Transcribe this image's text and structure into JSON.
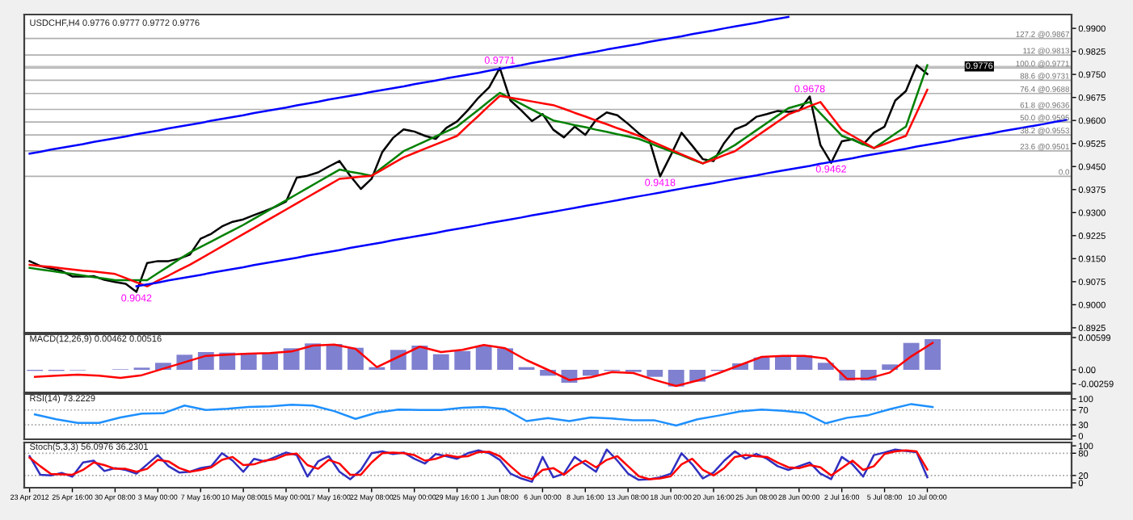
{
  "chart_data": [
    {
      "type": "line",
      "title": "USDCHF,H4 0.9776 0.9777 0.9772 0.9776",
      "ylim": [
        0.8909,
        0.9945
      ],
      "tick_labels": "y",
      "grid": false,
      "categories": [
        null,
        null,
        null,
        null,
        null,
        null,
        null,
        null,
        null,
        null,
        null,
        null,
        null,
        null,
        null,
        null,
        null,
        null,
        null,
        null,
        null,
        null,
        null,
        null,
        null,
        null,
        null,
        null,
        null,
        null,
        null,
        null,
        null,
        null,
        null,
        null,
        null,
        null,
        null,
        null,
        null,
        null,
        null,
        null,
        null,
        null,
        null,
        null,
        null,
        null,
        null,
        null,
        null,
        null,
        null,
        null,
        null,
        null,
        null,
        null,
        null,
        null,
        null,
        null,
        null,
        null,
        null,
        null,
        null,
        null,
        null,
        null,
        null,
        null,
        null,
        null,
        null,
        null,
        null,
        null,
        null,
        null,
        null,
        null,
        null,
        null,
        null,
        null,
        null,
        null,
        null,
        null,
        null,
        null,
        null,
        null,
        null,
        null
      ],
      "yticks": [
        {
          "value": 0.99,
          "label": "0.9900"
        },
        {
          "value": 0.9825,
          "label": "0.9825"
        },
        {
          "value": 0.975,
          "label": "0.9750"
        },
        {
          "value": 0.9675,
          "label": "0.9675"
        },
        {
          "value": 0.96,
          "label": "0.9600"
        },
        {
          "value": 0.9525,
          "label": "0.9525"
        },
        {
          "value": 0.945,
          "label": "0.9450"
        },
        {
          "value": 0.9375,
          "label": "0.9375"
        },
        {
          "value": 0.93,
          "label": "0.9300"
        },
        {
          "value": 0.9225,
          "label": "0.9225"
        },
        {
          "value": 0.915,
          "label": "0.9150"
        },
        {
          "value": 0.9075,
          "label": "0.9075"
        },
        {
          "value": 0.9,
          "label": "0.9000"
        },
        {
          "value": 0.8925,
          "label": "0.8925"
        }
      ],
      "series": [
        {
          "color": "#000000",
          "values": [
            0.9142,
            0.9126,
            0.9118,
            0.911,
            0.9092,
            0.9092,
            0.9093,
            0.9081,
            0.9074,
            0.9068,
            0.9042,
            0.9136,
            0.9142,
            0.9142,
            0.915,
            0.9163,
            0.9215,
            0.9231,
            0.9255,
            0.927,
            0.9278,
            0.9292,
            0.9305,
            0.9319,
            0.9336,
            0.9414,
            0.942,
            0.9431,
            0.945,
            0.9468,
            0.942,
            0.9377,
            0.941,
            0.9497,
            0.9543,
            0.9571,
            0.9564,
            0.955,
            0.954,
            0.9576,
            0.9597,
            0.9633,
            0.9674,
            0.9708,
            0.9771,
            0.9665,
            0.9633,
            0.9598,
            0.9621,
            0.957,
            0.9545,
            0.958,
            0.9553,
            0.9602,
            0.9626,
            0.9617,
            0.9589,
            0.9558,
            0.9535,
            0.9418,
            0.9487,
            0.956,
            0.9518,
            0.9474,
            0.9468,
            0.9527,
            0.9571,
            0.9585,
            0.9612,
            0.9621,
            0.9631,
            0.9628,
            0.9632,
            0.9678,
            0.952,
            0.9462,
            0.9532,
            0.9539,
            0.9522,
            0.956,
            0.958,
            0.9665,
            0.9696,
            0.978,
            0.9751,
            null,
            null,
            null,
            null,
            null,
            null,
            null,
            null,
            null,
            null,
            null,
            null,
            null
          ],
          "value_labels": [
            null,
            null,
            null,
            null,
            null,
            null,
            null,
            null,
            null,
            null,
            "0.9042",
            null,
            null,
            null,
            null,
            null,
            null,
            null,
            null,
            null,
            null,
            null,
            null,
            null,
            null,
            null,
            null,
            null,
            null,
            null,
            null,
            null,
            null,
            null,
            null,
            null,
            null,
            null,
            null,
            null,
            null,
            null,
            null,
            null,
            "0.9771",
            null,
            null,
            null,
            null,
            null,
            null,
            null,
            null,
            null,
            null,
            null,
            null,
            null,
            null,
            "0.9418",
            null,
            null,
            null,
            null,
            null,
            null,
            null,
            null,
            null,
            null,
            null,
            null,
            null,
            "0.9678",
            null,
            "0.9462",
            null,
            null,
            null,
            null,
            null,
            null,
            null,
            null,
            null,
            null,
            null,
            null,
            null,
            null,
            null,
            null,
            null,
            null,
            null,
            null,
            null,
            null
          ]
        },
        {
          "color": "#008000",
          "values": [
            0.912,
            0.9115,
            0.911,
            0.9105,
            0.91,
            0.9095,
            0.909,
            0.9085,
            0.908,
            0.908,
            0.908,
            0.908,
            0.9103,
            0.9125,
            0.9148,
            0.917,
            0.9188,
            0.9206,
            0.9224,
            0.9242,
            0.926,
            0.928,
            0.93,
            0.932,
            0.934,
            0.936,
            0.938,
            0.94,
            0.942,
            0.944,
            0.9433,
            0.9427,
            0.942,
            0.9447,
            0.9473,
            0.95,
            0.9516,
            0.9532,
            0.9548,
            0.9564,
            0.958,
            0.9608,
            0.9635,
            0.9663,
            0.969,
            0.9672,
            0.9654,
            0.9636,
            0.9618,
            0.96,
            0.9593,
            0.9585,
            0.9578,
            0.957,
            0.9563,
            0.9555,
            0.9548,
            0.954,
            0.9527,
            0.9513,
            0.95,
            0.9487,
            0.9473,
            0.946,
            0.948,
            0.95,
            0.952,
            0.9544,
            0.9568,
            0.9592,
            0.9616,
            0.964,
            0.965,
            0.966,
            0.9623,
            0.9587,
            0.955,
            0.9537,
            0.9523,
            0.951,
            0.9533,
            0.9557,
            0.958,
            0.968,
            0.978,
            null,
            null,
            null,
            null,
            null,
            null,
            null,
            null,
            null,
            null,
            null,
            null,
            null
          ]
        },
        {
          "color": "#ff0000",
          "values": [
            0.913,
            0.9126,
            0.9123,
            0.9119,
            0.9115,
            0.9111,
            0.9108,
            0.9104,
            0.91,
            0.9087,
            0.9073,
            0.906,
            0.9078,
            0.9095,
            0.9113,
            0.913,
            0.915,
            0.917,
            0.919,
            0.921,
            0.923,
            0.925,
            0.927,
            0.929,
            0.931,
            0.933,
            0.935,
            0.937,
            0.939,
            0.941,
            0.9413,
            0.9417,
            0.942,
            0.944,
            0.946,
            0.948,
            0.9494,
            0.9508,
            0.9522,
            0.9536,
            0.955,
            0.9583,
            0.9615,
            0.9648,
            0.968,
            0.9674,
            0.9668,
            0.9662,
            0.9656,
            0.965,
            0.9638,
            0.9625,
            0.9613,
            0.96,
            0.9588,
            0.9575,
            0.9563,
            0.955,
            0.9535,
            0.952,
            0.9505,
            0.949,
            0.9475,
            0.946,
            0.9473,
            0.9487,
            0.95,
            0.9524,
            0.9548,
            0.9572,
            0.9596,
            0.962,
            0.9633,
            0.9647,
            0.966,
            0.9615,
            0.957,
            0.955,
            0.953,
            0.951,
            0.9523,
            0.9537,
            0.955,
            0.9625,
            0.97,
            null,
            null,
            null,
            null,
            null,
            null,
            null,
            null,
            null,
            null,
            null,
            null,
            null
          ]
        },
        {
          "color": "#0000ff",
          "values": [
            0.9492,
            0.9498,
            0.9505,
            0.9511,
            0.9517,
            0.9523,
            0.953,
            0.9536,
            0.9542,
            0.9548,
            0.9555,
            0.9561,
            0.9567,
            0.9574,
            0.958,
            0.9586,
            0.9592,
            0.9599,
            0.9605,
            0.9611,
            0.9617,
            0.9624,
            0.963,
            0.9636,
            0.9642,
            0.9649,
            0.9655,
            0.9661,
            0.9668,
            0.9674,
            0.968,
            0.9686,
            0.9693,
            0.9699,
            0.9705,
            0.9711,
            0.9718,
            0.9724,
            0.973,
            0.9737,
            0.9743,
            0.9749,
            0.9755,
            0.9762,
            0.9768,
            0.9774,
            0.978,
            0.9787,
            0.9793,
            0.9799,
            0.9805,
            0.9812,
            0.9818,
            0.9824,
            0.9831,
            0.9837,
            0.9843,
            0.9849,
            0.9856,
            0.9862,
            0.9868,
            0.9874,
            0.9881,
            0.9887,
            0.9893,
            0.99,
            0.9906,
            0.9912,
            0.9918,
            0.9925,
            0.9931,
            0.9937,
            null,
            null,
            null,
            null,
            null,
            null,
            null,
            null,
            null,
            null,
            null,
            null,
            null,
            null,
            null,
            null,
            null,
            null,
            null,
            null,
            null,
            null,
            null,
            null,
            null,
            null
          ]
        },
        {
          "color": "#0000ff",
          "values": [
            null,
            null,
            null,
            null,
            null,
            null,
            null,
            null,
            null,
            null,
            0.906,
            0.9066,
            0.9072,
            0.9079,
            0.9085,
            0.9091,
            0.9097,
            0.9104,
            0.911,
            0.9116,
            0.9122,
            0.9129,
            0.9135,
            0.9141,
            0.9147,
            0.9153,
            0.916,
            0.9166,
            0.9172,
            0.9178,
            0.9185,
            0.9191,
            0.9197,
            0.9203,
            0.921,
            0.9216,
            0.9222,
            0.9228,
            0.9234,
            0.9241,
            0.9247,
            0.9253,
            0.9259,
            0.9266,
            0.9272,
            0.9278,
            0.9284,
            0.9291,
            0.9297,
            0.9303,
            0.9309,
            0.9315,
            0.9322,
            0.9328,
            0.9334,
            0.934,
            0.9347,
            0.9353,
            0.9359,
            0.9365,
            0.9372,
            0.9378,
            0.9384,
            0.939,
            0.9396,
            0.9403,
            0.9409,
            0.9415,
            0.9421,
            0.9428,
            0.9434,
            0.944,
            0.9446,
            0.9452,
            0.9459,
            0.9465,
            0.9471,
            0.9477,
            0.9484,
            0.949,
            0.9496,
            0.9502,
            0.9508,
            0.9515,
            0.9521,
            0.9527,
            0.9533,
            0.954,
            0.9546,
            0.9552,
            0.9558,
            0.9565,
            0.9571,
            0.9577,
            0.9583,
            0.9589,
            0.9596,
            0.9602
          ]
        }
      ],
      "ref_lines": [
        {
          "axis": "y",
          "value": 0.9776,
          "label": "0.9776",
          "color": "#c0c0c0",
          "line_style": "solid"
        },
        {
          "axis": "y",
          "value": 0.9418,
          "color": "#b0b0b0"
        },
        {
          "axis": "y",
          "value": 0.9501,
          "label": "23.6 @0.9501",
          "color": "#b0b0b0"
        },
        {
          "axis": "y",
          "value": 0.9553,
          "label": "38.2 @0.9553",
          "color": "#b0b0b0"
        },
        {
          "axis": "y",
          "value": 0.9595,
          "label": "50.0 @0.9595",
          "color": "#b0b0b0"
        },
        {
          "axis": "y",
          "value": 0.9636,
          "label": "61.8 @0.9636",
          "color": "#b0b0b0"
        },
        {
          "axis": "y",
          "value": 0.9688,
          "label": "76.4 @0.9688",
          "color": "#b0b0b0"
        },
        {
          "axis": "y",
          "value": 0.9731,
          "label": "88.6 @0.9731",
          "color": "#b0b0b0"
        },
        {
          "axis": "y",
          "value": 0.9771,
          "label": "100.0 @0.9771",
          "color": "#b0b0b0"
        },
        {
          "axis": "y",
          "value": 0.9813,
          "label": "112 @0.9813",
          "color": "#b0b0b0"
        },
        {
          "axis": "y",
          "value": 0.9867,
          "label": "127.2 @0.9867",
          "color": "#b0b0b0"
        }
      ],
      "annotations": [
        {
          "text": "0.0",
          "y": 0.9418
        }
      ]
    },
    {
      "type": "bar",
      "title": "MACD(12,26,9) 0.00462 0.00516",
      "ylim": [
        -0.0042,
        0.0066
      ],
      "tick_labels": "y",
      "grid": false,
      "categories": [
        null,
        null,
        null,
        null,
        null,
        null,
        null,
        null,
        null,
        null,
        null,
        null,
        null,
        null,
        null,
        null,
        null,
        null,
        null,
        null,
        null,
        null,
        null,
        null,
        null,
        null,
        null,
        null,
        null,
        null,
        null,
        null,
        null,
        null,
        null,
        null,
        null,
        null,
        null,
        null,
        null,
        null,
        null,
        null,
        null,
        null,
        null,
        null,
        null
      ],
      "yticks": [
        {
          "value": 0.00599,
          "label": "0.00599"
        },
        {
          "value": 0,
          "label": "0.00"
        },
        {
          "value": -0.00259,
          "label": "-0.00259"
        }
      ],
      "series": [
        {
          "color": "#8080d0",
          "values": [
            -0.0002,
            -0.0002,
            -0.0001,
            0.0,
            0.0001,
            0.0004,
            0.0013,
            0.0028,
            0.0033,
            0.0032,
            0.0031,
            0.003,
            0.004,
            0.0049,
            0.0048,
            0.0041,
            0.0005,
            0.0037,
            0.0045,
            0.0029,
            0.0035,
            0.0044,
            0.004,
            0.0005,
            -0.0011,
            -0.0024,
            -0.0011,
            -0.0002,
            -0.0004,
            -0.0013,
            -0.0031,
            -0.0022,
            -0.0002,
            0.0012,
            0.0023,
            0.0027,
            0.0027,
            0.0013,
            -0.002,
            -0.002,
            0.001,
            0.005,
            0.0057,
            null,
            null,
            null,
            null,
            null,
            null
          ]
        },
        {
          "type": "line",
          "color": "#ff0000",
          "values": [
            -0.0013,
            -0.0011,
            -0.0009,
            -0.0011,
            -0.0015,
            -0.001,
            0.0002,
            0.0014,
            0.0026,
            0.0028,
            0.003,
            0.0031,
            0.0034,
            0.0045,
            0.0047,
            0.0039,
            0.0005,
            0.0024,
            0.0043,
            0.0033,
            0.0037,
            0.0046,
            0.004,
            0.0018,
            0.0,
            -0.0019,
            -0.0014,
            -0.0004,
            -0.0006,
            -0.0019,
            -0.003,
            -0.002,
            -0.0006,
            0.0009,
            0.0024,
            0.0026,
            0.0026,
            0.0021,
            -0.0017,
            -0.0016,
            -0.0005,
            0.0025,
            0.005,
            null,
            null,
            null,
            null,
            null,
            null
          ]
        }
      ]
    },
    {
      "type": "line",
      "title": "RSI(14) 73.2229",
      "ylim": [
        -9,
        113
      ],
      "tick_labels": "y",
      "grid": false,
      "yticks": [
        100,
        70,
        30,
        0
      ],
      "categories": [
        null,
        null,
        null,
        null,
        null,
        null,
        null,
        null,
        null,
        null,
        null,
        null,
        null,
        null,
        null,
        null,
        null,
        null,
        null,
        null,
        null,
        null,
        null,
        null,
        null,
        null,
        null,
        null,
        null,
        null,
        null,
        null,
        null,
        null,
        null,
        null,
        null,
        null,
        null,
        null,
        null,
        null,
        null,
        null,
        null,
        null,
        null,
        null,
        null
      ],
      "series": [
        {
          "color": "#1e90ff",
          "values": [
            58,
            45,
            35,
            35,
            50,
            60,
            61,
            82,
            70,
            73,
            78,
            80,
            84,
            82,
            67,
            46,
            63,
            71,
            70,
            70,
            76,
            78,
            72,
            40,
            48,
            40,
            50,
            47,
            42,
            42,
            28,
            45,
            55,
            66,
            71,
            68,
            62,
            34,
            49,
            56,
            72,
            86,
            78,
            null,
            null,
            null,
            null,
            null,
            null
          ]
        }
      ],
      "ref_lines": [
        {
          "axis": "y",
          "value": 70,
          "color": "#a0a0a0",
          "line_style": "dotted"
        },
        {
          "axis": "y",
          "value": 30,
          "color": "#a0a0a0",
          "line_style": "dotted"
        }
      ]
    },
    {
      "type": "line",
      "title": "Stoch(5,3,3) 56.0976 36.2301",
      "ylim": [
        -13,
        109
      ],
      "grid": false,
      "yticks": [
        100,
        80,
        20,
        0
      ],
      "categories": [
        "23 Apr 2012",
        null,
        null,
        null,
        "25 Apr 16:00",
        null,
        null,
        null,
        "30 Apr 08:00",
        null,
        null,
        null,
        "3 May 00:00",
        null,
        null,
        null,
        "7 May 16:00",
        null,
        null,
        null,
        "10 May 08:00",
        null,
        null,
        null,
        "15 May 00:00",
        null,
        null,
        null,
        "17 May 16:00",
        null,
        null,
        null,
        "22 May 08:00",
        null,
        null,
        null,
        "25 May 00:00",
        null,
        null,
        null,
        "29 May 16:00",
        null,
        null,
        null,
        "1 Jun 08:00",
        null,
        null,
        null,
        "6 Jun 00:00",
        null,
        null,
        null,
        "8 Jun 16:00",
        null,
        null,
        null,
        "13 Jun 08:00",
        null,
        null,
        null,
        "18 Jun 00:00",
        null,
        null,
        null,
        "20 Jun 16:00",
        null,
        null,
        null,
        "25 Jun 08:00",
        null,
        null,
        null,
        "28 Jun 00:00",
        null,
        null,
        null,
        "2 Jul 16:00",
        null,
        null,
        null,
        "5 Jul 08:00",
        null,
        null,
        null,
        "10 Jul 00:00",
        null,
        null,
        null,
        null,
        null,
        null,
        null,
        null,
        null,
        null,
        null,
        null,
        null
      ],
      "series": [
        {
          "color": "#3030c0",
          "values": [
            72,
            22,
            20,
            27,
            17,
            55,
            60,
            32,
            40,
            35,
            25,
            50,
            75,
            45,
            28,
            30,
            40,
            45,
            80,
            60,
            30,
            65,
            58,
            70,
            82,
            75,
            17,
            58,
            72,
            30,
            10,
            35,
            80,
            85,
            78,
            82,
            65,
            52,
            78,
            72,
            65,
            80,
            88,
            80,
            62,
            25,
            12,
            3,
            70,
            15,
            25,
            70,
            50,
            30,
            90,
            60,
            25,
            8,
            10,
            15,
            25,
            80,
            50,
            12,
            28,
            60,
            85,
            65,
            78,
            65,
            45,
            35,
            45,
            55,
            25,
            10,
            70,
            50,
            17,
            75,
            82,
            90,
            86,
            83,
            15,
            null,
            null,
            null,
            null,
            null,
            null,
            null,
            null,
            null,
            null,
            null,
            null,
            null
          ]
        },
        {
          "color": "#ff0000",
          "values": [
            68,
            45,
            24,
            23,
            22,
            35,
            55,
            48,
            38,
            38,
            30,
            38,
            62,
            58,
            40,
            30,
            35,
            42,
            62,
            70,
            48,
            50,
            60,
            64,
            76,
            79,
            48,
            38,
            62,
            52,
            22,
            22,
            55,
            80,
            82,
            80,
            75,
            60,
            65,
            75,
            70,
            72,
            83,
            84,
            72,
            45,
            20,
            10,
            35,
            40,
            22,
            45,
            60,
            42,
            62,
            72,
            45,
            18,
            10,
            12,
            18,
            50,
            65,
            35,
            20,
            40,
            70,
            75,
            72,
            70,
            55,
            42,
            40,
            48,
            42,
            20,
            40,
            60,
            35,
            45,
            78,
            85,
            88,
            85,
            36,
            null,
            null,
            null,
            null,
            null,
            null,
            null,
            null,
            null,
            null,
            null,
            null,
            null
          ]
        }
      ],
      "ref_lines": [
        {
          "axis": "y",
          "value": 80,
          "color": "#a0a0a0",
          "line_style": "dotted"
        },
        {
          "axis": "y",
          "value": 20,
          "color": "#a0a0a0",
          "line_style": "dotted"
        }
      ]
    }
  ]
}
